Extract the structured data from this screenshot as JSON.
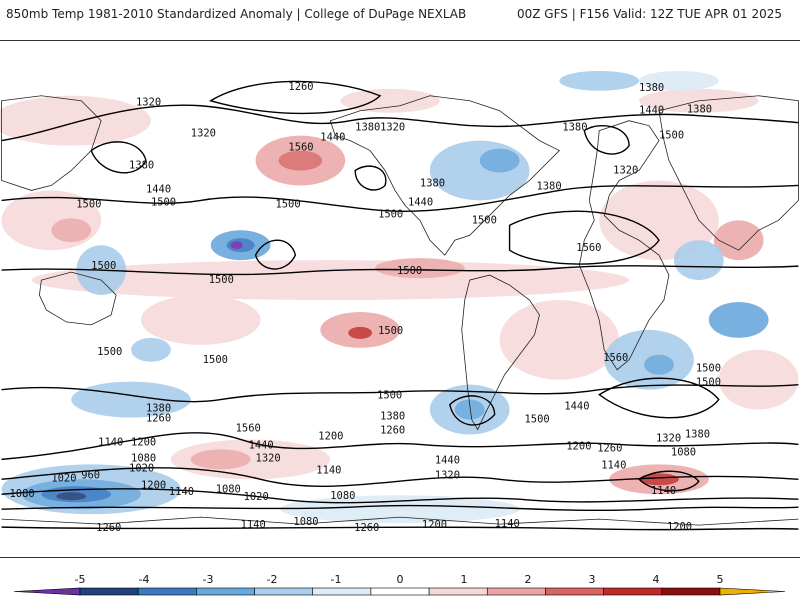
{
  "header": {
    "left": "850mb Temp 1981-2010 Standardized Anomaly | College of DuPage NEXLAB",
    "right": "00Z GFS | F156 Valid: 12Z TUE APR 01 2025"
  },
  "map": {
    "projection": "equirectangular-global",
    "contour_labels": [
      "1260",
      "1320",
      "1320",
      "1440",
      "1560",
      "1380",
      "1320",
      "1380",
      "1440",
      "1500",
      "1500",
      "1500",
      "1500",
      "1380",
      "1320",
      "1380",
      "1440",
      "1500",
      "1380",
      "1440",
      "1380",
      "1500",
      "1380",
      "1560",
      "1500",
      "1500",
      "1500",
      "1500",
      "1500",
      "1500",
      "1500",
      "1560",
      "1500",
      "1440",
      "1500",
      "1500",
      "1380",
      "1260",
      "1560",
      "1380",
      "1200",
      "1440",
      "1140",
      "1320",
      "1260",
      "1440",
      "1320",
      "1200",
      "1260",
      "1140",
      "1080",
      "1020",
      "960",
      "1020",
      "1080",
      "1140",
      "1080",
      "1020",
      "1080",
      "1200",
      "1320",
      "1380",
      "1080",
      "1140",
      "1140",
      "1200",
      "1260",
      "1140",
      "1080",
      "1260",
      "1200",
      "1140",
      "1200"
    ]
  },
  "colorbar": {
    "ticks": [
      "-5",
      "-4",
      "-3",
      "-2",
      "-1",
      "0",
      "1",
      "2",
      "3",
      "4",
      "5"
    ],
    "colors": [
      "#6d2fa8",
      "#22407a",
      "#3a78c4",
      "#6aa8dc",
      "#a9cdea",
      "#dcebf6",
      "#ffffff",
      "#f6d8d8",
      "#eba5a5",
      "#d86464",
      "#c02a2a",
      "#8a0f12",
      "#f0b000"
    ]
  }
}
